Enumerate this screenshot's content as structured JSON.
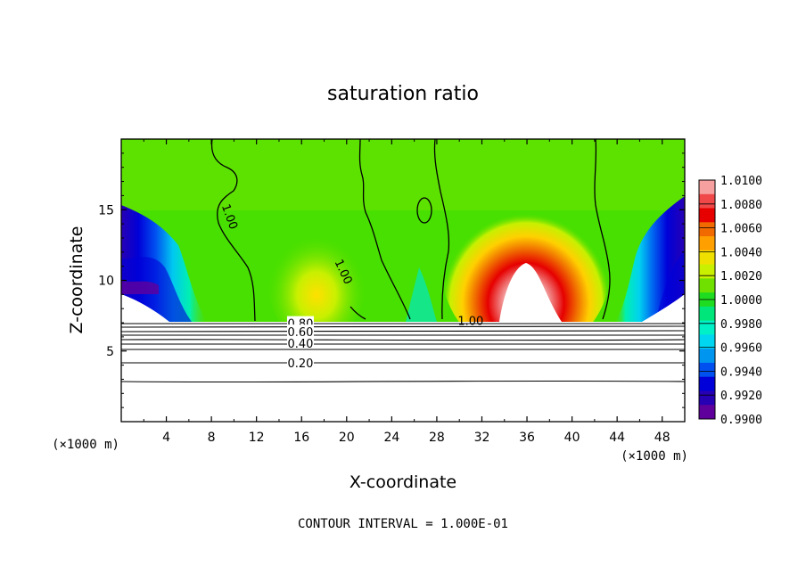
{
  "chart_data": {
    "type": "heatmap",
    "title": "saturation ratio",
    "xlabel": "X-coordinate",
    "ylabel": "Z-coordinate",
    "x_unit": "(×1000 m)",
    "z_unit": "(×1000 m)",
    "xlim": [
      0,
      50
    ],
    "ylim": [
      0,
      20
    ],
    "x_ticks": [
      4,
      8,
      12,
      16,
      20,
      24,
      28,
      32,
      36,
      40,
      44,
      48
    ],
    "y_ticks": [
      5,
      10,
      15
    ],
    "footer": "CONTOUR INTERVAL = 1.000E-01",
    "colorbar": {
      "labels": [
        "1.0100",
        "1.0080",
        "1.0060",
        "1.0040",
        "1.0020",
        "1.0000",
        "0.9980",
        "0.9960",
        "0.9940",
        "0.9920",
        "0.9900"
      ],
      "colors": [
        "#f6a0a0",
        "#f04848",
        "#e60000",
        "#f06a00",
        "#ffa000",
        "#f0e000",
        "#c8f000",
        "#70e000",
        "#20dc20",
        "#00e67a",
        "#00f0c8",
        "#00d6f0",
        "#0096f0",
        "#0050f0",
        "#0000d8",
        "#2800b4",
        "#60009c"
      ]
    },
    "contour_labels": [
      {
        "text": "1.00",
        "x": 9.6,
        "z": 14.5
      },
      {
        "text": "1.00",
        "x": 19.7,
        "z": 10.6
      },
      {
        "text": "1.00",
        "x": 31.0,
        "z": 7.1
      },
      {
        "text": "0.80",
        "x": 15.9,
        "z": 6.9
      },
      {
        "text": "0.60",
        "x": 15.9,
        "z": 6.3
      },
      {
        "text": "0.40",
        "x": 15.9,
        "z": 5.5
      },
      {
        "text": "0.20",
        "x": 15.9,
        "z": 4.1
      }
    ]
  }
}
